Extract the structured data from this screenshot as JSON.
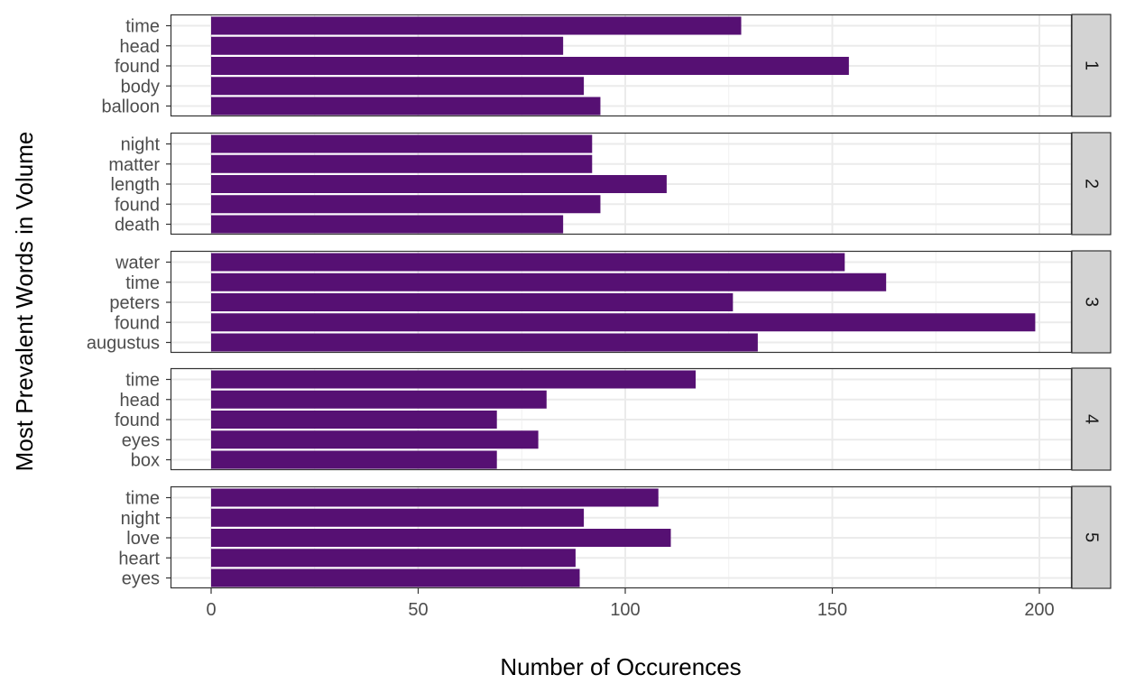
{
  "chart_data": {
    "type": "bar",
    "orientation": "horizontal",
    "faceted": true,
    "xlabel": "Number of Occurences",
    "ylabel": "Most Prevalent Words in Volume",
    "xlim": [
      0,
      200
    ],
    "x_ticks": [
      0,
      50,
      100,
      150,
      200
    ],
    "grid": true,
    "bar_color": "#561073",
    "strip_color": "#d3d3d3",
    "panels": [
      {
        "strip_label": "1",
        "categories": [
          "time",
          "head",
          "found",
          "body",
          "balloon"
        ],
        "values": [
          128,
          85,
          154,
          90,
          94
        ]
      },
      {
        "strip_label": "2",
        "categories": [
          "night",
          "matter",
          "length",
          "found",
          "death"
        ],
        "values": [
          92,
          92,
          110,
          94,
          85
        ]
      },
      {
        "strip_label": "3",
        "categories": [
          "water",
          "time",
          "peters",
          "found",
          "augustus"
        ],
        "values": [
          153,
          163,
          126,
          199,
          132
        ]
      },
      {
        "strip_label": "4",
        "categories": [
          "time",
          "head",
          "found",
          "eyes",
          "box"
        ],
        "values": [
          117,
          81,
          69,
          79,
          69
        ]
      },
      {
        "strip_label": "5",
        "categories": [
          "time",
          "night",
          "love",
          "heart",
          "eyes"
        ],
        "values": [
          108,
          90,
          111,
          88,
          89
        ]
      }
    ]
  }
}
